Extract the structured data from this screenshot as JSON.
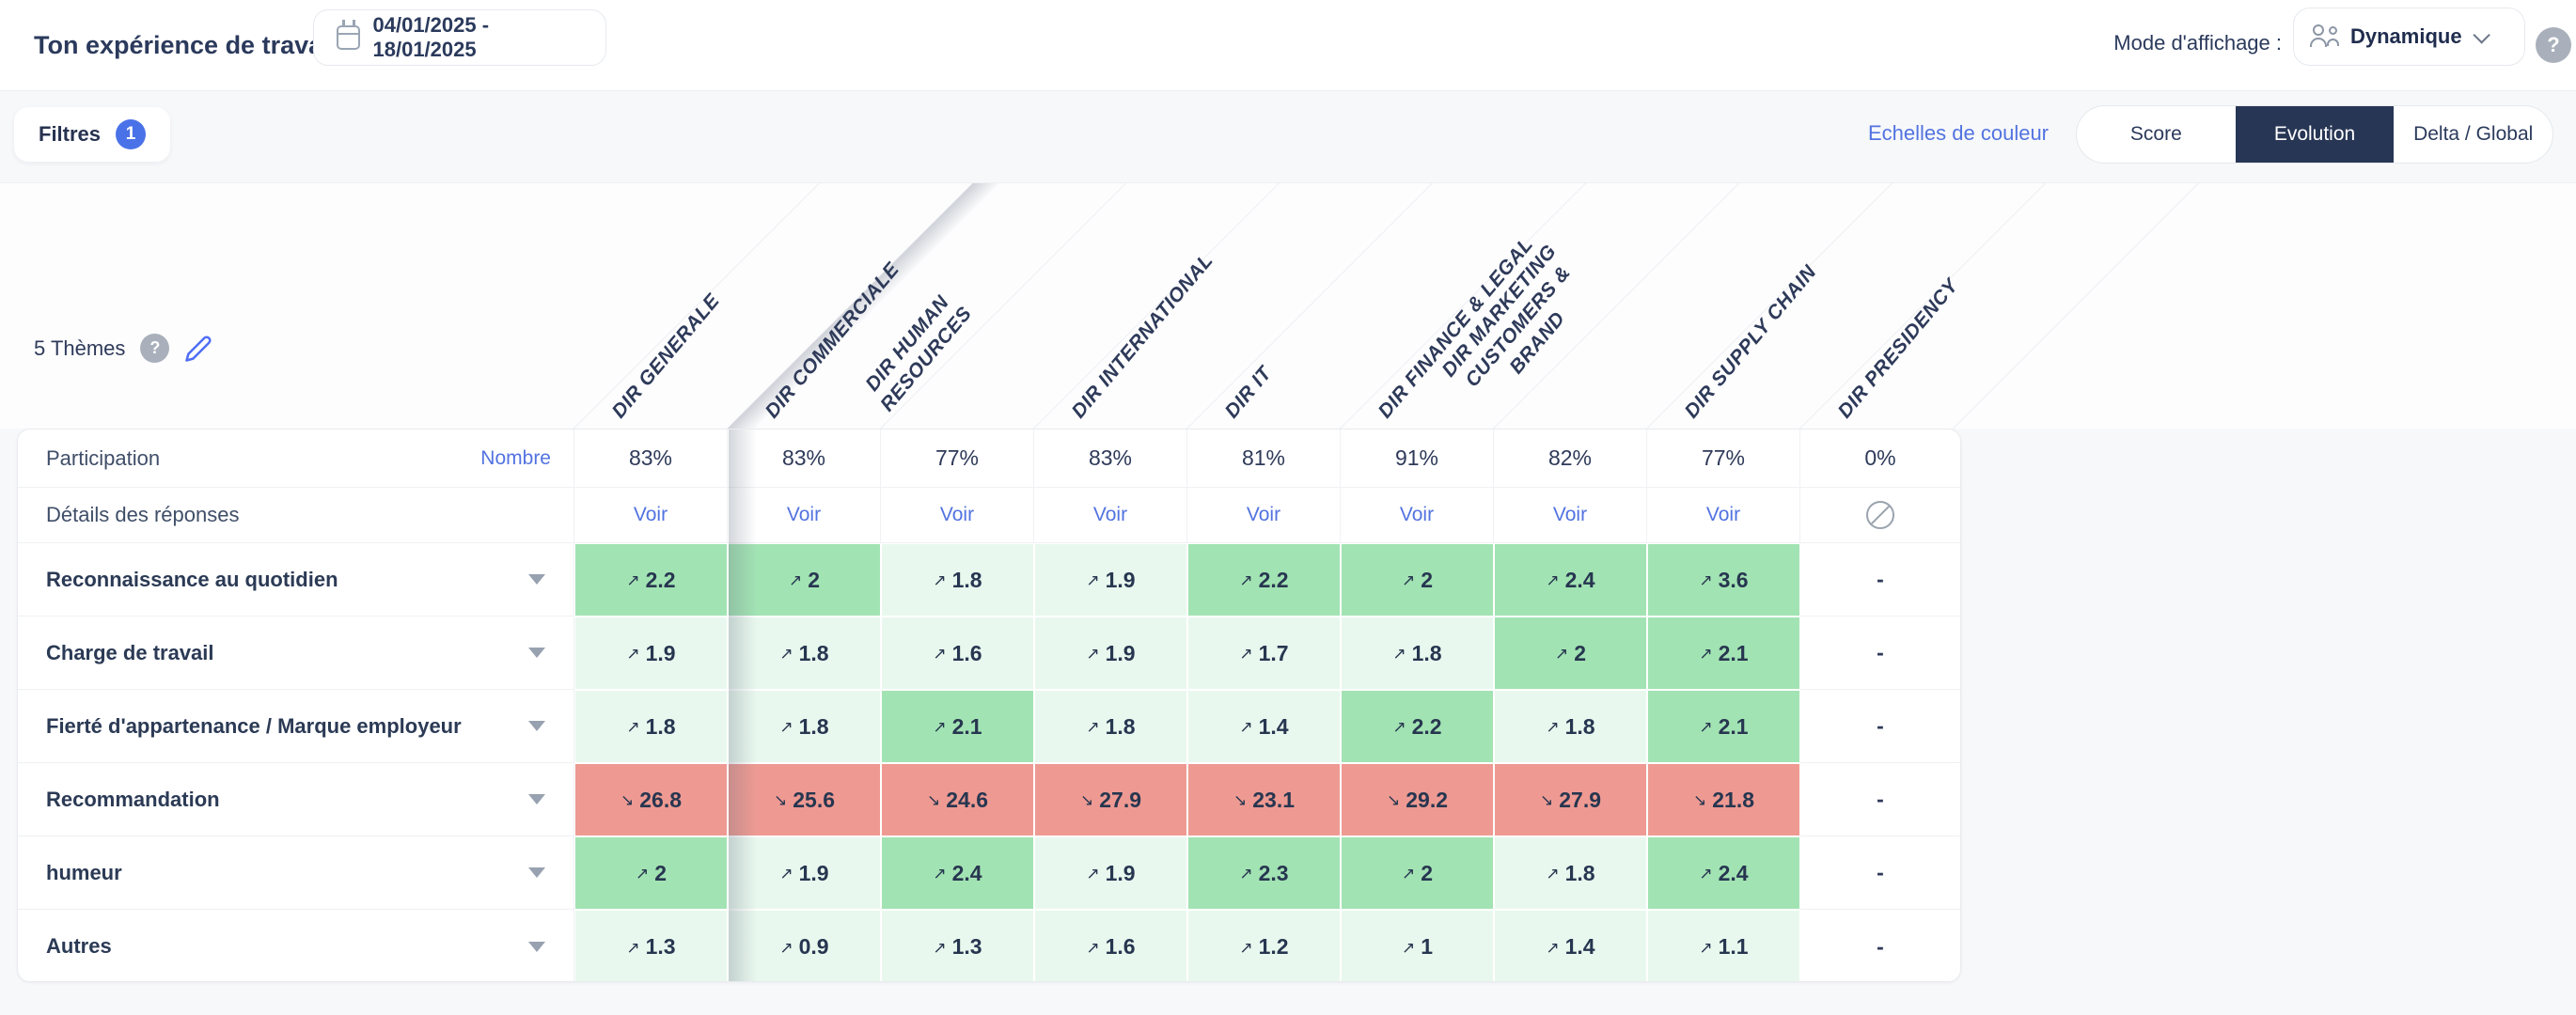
{
  "topbar": {
    "title": "Ton expérience de travail",
    "date_range": "04/01/2025 - 18/01/2025",
    "mode_label": "Mode d'affichage :",
    "mode_value": "Dynamique",
    "help_glyph": "?"
  },
  "toolbar": {
    "filters_label": "Filtres",
    "filters_count": "1",
    "color_scale_link": "Echelles de couleur",
    "views": [
      "Score",
      "Evolution",
      "Delta / Global"
    ],
    "active_view": "Evolution"
  },
  "themes_summary": {
    "label": "5 Thèmes",
    "help_glyph": "?"
  },
  "departments": [
    "DIR GENERALE",
    "DIR COMMERCIALE",
    "DIR HUMAN RESOURCES",
    "DIR INTERNATIONAL",
    "DIR IT",
    "DIR FINANCE & LEGAL",
    "DIR MARKETING CUSTOMERS & BRAND",
    "DIR SUPPLY CHAIN",
    "DIR PRESIDENCY"
  ],
  "table": {
    "participation_label": "Participation",
    "participation_link": "Nombre",
    "participation_values": [
      "83%",
      "83%",
      "77%",
      "83%",
      "81%",
      "91%",
      "82%",
      "77%",
      "0%"
    ],
    "details_label": "Détails des réponses",
    "details_link_label": "Voir",
    "details_cells": [
      "Voir",
      "Voir",
      "Voir",
      "Voir",
      "Voir",
      "Voir",
      "Voir",
      "Voir",
      "blocked"
    ],
    "rows": [
      {
        "label": "Reconnaissance au quotidien",
        "cells": [
          {
            "v": "2.2",
            "d": "up",
            "t": "g2"
          },
          {
            "v": "2",
            "d": "up",
            "t": "g2"
          },
          {
            "v": "1.8",
            "d": "up",
            "t": "g1"
          },
          {
            "v": "1.9",
            "d": "up",
            "t": "g1"
          },
          {
            "v": "2.2",
            "d": "up",
            "t": "g2"
          },
          {
            "v": "2",
            "d": "up",
            "t": "g2"
          },
          {
            "v": "2.4",
            "d": "up",
            "t": "g2"
          },
          {
            "v": "3.6",
            "d": "up",
            "t": "g2"
          },
          {
            "v": "-",
            "d": "none",
            "t": "none"
          }
        ]
      },
      {
        "label": "Charge de travail",
        "cells": [
          {
            "v": "1.9",
            "d": "up",
            "t": "g1"
          },
          {
            "v": "1.8",
            "d": "up",
            "t": "g1"
          },
          {
            "v": "1.6",
            "d": "up",
            "t": "g1"
          },
          {
            "v": "1.9",
            "d": "up",
            "t": "g1"
          },
          {
            "v": "1.7",
            "d": "up",
            "t": "g1"
          },
          {
            "v": "1.8",
            "d": "up",
            "t": "g1"
          },
          {
            "v": "2",
            "d": "up",
            "t": "g2"
          },
          {
            "v": "2.1",
            "d": "up",
            "t": "g2"
          },
          {
            "v": "-",
            "d": "none",
            "t": "none"
          }
        ]
      },
      {
        "label": "Fierté d'appartenance / Marque employeur",
        "cells": [
          {
            "v": "1.8",
            "d": "up",
            "t": "g1"
          },
          {
            "v": "1.8",
            "d": "up",
            "t": "g1"
          },
          {
            "v": "2.1",
            "d": "up",
            "t": "g2"
          },
          {
            "v": "1.8",
            "d": "up",
            "t": "g1"
          },
          {
            "v": "1.4",
            "d": "up",
            "t": "g1"
          },
          {
            "v": "2.2",
            "d": "up",
            "t": "g2"
          },
          {
            "v": "1.8",
            "d": "up",
            "t": "g1"
          },
          {
            "v": "2.1",
            "d": "up",
            "t": "g2"
          },
          {
            "v": "-",
            "d": "none",
            "t": "none"
          }
        ]
      },
      {
        "label": "Recommandation",
        "cells": [
          {
            "v": "26.8",
            "d": "down",
            "t": "r"
          },
          {
            "v": "25.6",
            "d": "down",
            "t": "r"
          },
          {
            "v": "24.6",
            "d": "down",
            "t": "r"
          },
          {
            "v": "27.9",
            "d": "down",
            "t": "r"
          },
          {
            "v": "23.1",
            "d": "down",
            "t": "r"
          },
          {
            "v": "29.2",
            "d": "down",
            "t": "r"
          },
          {
            "v": "27.9",
            "d": "down",
            "t": "r"
          },
          {
            "v": "21.8",
            "d": "down",
            "t": "r"
          },
          {
            "v": "-",
            "d": "none",
            "t": "none"
          }
        ]
      },
      {
        "label": "humeur",
        "cells": [
          {
            "v": "2",
            "d": "up",
            "t": "g2"
          },
          {
            "v": "1.9",
            "d": "up",
            "t": "g1"
          },
          {
            "v": "2.4",
            "d": "up",
            "t": "g2"
          },
          {
            "v": "1.9",
            "d": "up",
            "t": "g1"
          },
          {
            "v": "2.3",
            "d": "up",
            "t": "g2"
          },
          {
            "v": "2",
            "d": "up",
            "t": "g2"
          },
          {
            "v": "1.8",
            "d": "up",
            "t": "g1"
          },
          {
            "v": "2.4",
            "d": "up",
            "t": "g2"
          },
          {
            "v": "-",
            "d": "none",
            "t": "none"
          }
        ]
      },
      {
        "label": "Autres",
        "cells": [
          {
            "v": "1.3",
            "d": "up",
            "t": "g1"
          },
          {
            "v": "0.9",
            "d": "up",
            "t": "g1"
          },
          {
            "v": "1.3",
            "d": "up",
            "t": "g1"
          },
          {
            "v": "1.6",
            "d": "up",
            "t": "g1"
          },
          {
            "v": "1.2",
            "d": "up",
            "t": "g1"
          },
          {
            "v": "1",
            "d": "up",
            "t": "g1"
          },
          {
            "v": "1.4",
            "d": "up",
            "t": "g1"
          },
          {
            "v": "1.1",
            "d": "up",
            "t": "g1"
          },
          {
            "v": "-",
            "d": "none",
            "t": "none"
          }
        ]
      }
    ]
  },
  "glyphs": {
    "arrow_up": "↗",
    "arrow_down": "↘"
  },
  "colors": {
    "accent_blue": "#5273e0",
    "badge_blue": "#4a72e8",
    "active_segment": "#283655",
    "green_strong": "#a2e3b3",
    "green_soft": "#e9f8ee",
    "red_bad": "#ee9a92",
    "text_navy": "#2e3a59"
  }
}
